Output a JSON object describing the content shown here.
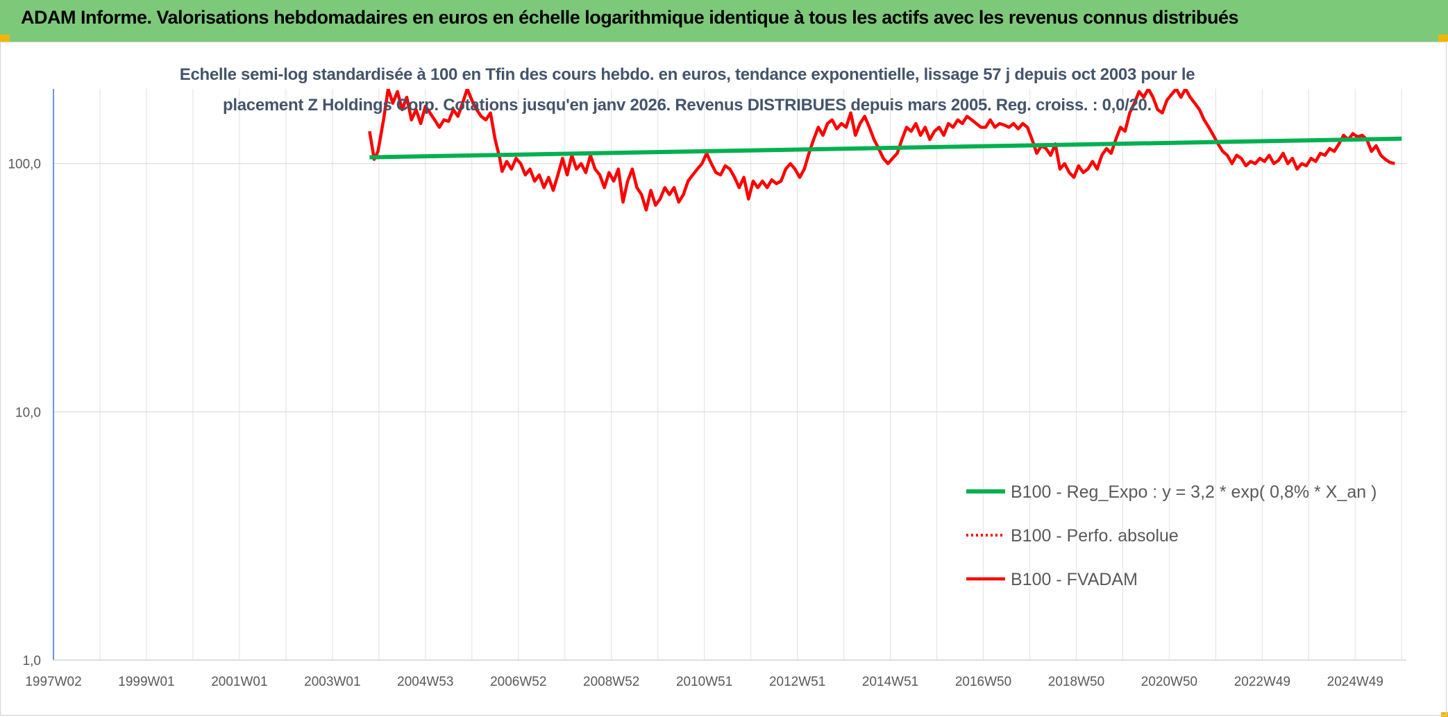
{
  "header": {
    "title": "ADAM Informe. Valorisations hebdomadaires en euros en échelle logarithmique identique à tous les actifs avec les revenus connus distribués"
  },
  "colors": {
    "header_bg": "#7dc97a",
    "accent": "#f2b600",
    "regression": "#00b050",
    "fvadam": "#ff0000",
    "perf": "#ff0000",
    "title_text": "#44546a"
  },
  "chart_data": {
    "type": "line",
    "title_lines": [
      "Echelle semi-log standardisée à 100 en Tfin des cours hebdo. en euros, tendance exponentielle, lissage 57 j depuis oct 2003 pour le",
      "placement Z Holdings Corp. Cotations jusqu'en janv 2026. Revenus DISTRIBUES depuis mars 2005. Reg. croiss. : 0,0/20."
    ],
    "y_scale": "log",
    "ylim": [
      1,
      200
    ],
    "y_ticks": [
      {
        "value": 1,
        "label": "1,0"
      },
      {
        "value": 10,
        "label": "10,0"
      },
      {
        "value": 100,
        "label": "100,0"
      }
    ],
    "x_range": [
      1997.0,
      2026.1
    ],
    "x_ticks": [
      {
        "x": 1997.0,
        "label": "1997W02"
      },
      {
        "x": 1999.0,
        "label": "1999W01"
      },
      {
        "x": 2001.0,
        "label": "2001W01"
      },
      {
        "x": 2003.0,
        "label": "2003W01"
      },
      {
        "x": 2005.0,
        "label": "2004W53"
      },
      {
        "x": 2007.0,
        "label": "2006W52"
      },
      {
        "x": 2009.0,
        "label": "2008W52"
      },
      {
        "x": 2011.0,
        "label": "2010W51"
      },
      {
        "x": 2013.0,
        "label": "2012W51"
      },
      {
        "x": 2015.0,
        "label": "2014W51"
      },
      {
        "x": 2017.0,
        "label": "2016W50"
      },
      {
        "x": 2019.0,
        "label": "2018W50"
      },
      {
        "x": 2021.0,
        "label": "2020W50"
      },
      {
        "x": 2023.0,
        "label": "2022W49"
      },
      {
        "x": 2025.0,
        "label": "2024W49"
      }
    ],
    "grid": true,
    "legend_position": "bottom-right",
    "series": [
      {
        "name": "B100 - Reg_Expo : y = 3,2 * exp( 0,8% *  X_an )",
        "style": "solid-thick",
        "color": "#00b050",
        "points": [
          [
            2003.8,
            106
          ],
          [
            2026.0,
            126
          ]
        ]
      },
      {
        "name": "B100 - Perfo. absolue",
        "style": "dotted",
        "color": "#ff0000",
        "points": []
      },
      {
        "name": "B100 - FVADAM",
        "style": "solid",
        "color": "#ff0000",
        "points": [
          [
            2003.8,
            135
          ],
          [
            2003.9,
            104
          ],
          [
            2003.98,
            112
          ],
          [
            2004.1,
            150
          ],
          [
            2004.2,
            200
          ],
          [
            2004.3,
            175
          ],
          [
            2004.4,
            195
          ],
          [
            2004.5,
            165
          ],
          [
            2004.6,
            185
          ],
          [
            2004.7,
            150
          ],
          [
            2004.8,
            165
          ],
          [
            2004.9,
            145
          ],
          [
            2005.0,
            170
          ],
          [
            2005.1,
            160
          ],
          [
            2005.2,
            150
          ],
          [
            2005.3,
            140
          ],
          [
            2005.4,
            150
          ],
          [
            2005.5,
            148
          ],
          [
            2005.6,
            165
          ],
          [
            2005.7,
            155
          ],
          [
            2005.8,
            175
          ],
          [
            2005.9,
            200
          ],
          [
            2006.0,
            180
          ],
          [
            2006.1,
            165
          ],
          [
            2006.2,
            155
          ],
          [
            2006.3,
            150
          ],
          [
            2006.4,
            160
          ],
          [
            2006.5,
            125
          ],
          [
            2006.6,
            105
          ],
          [
            2006.65,
            93
          ],
          [
            2006.75,
            102
          ],
          [
            2006.85,
            95
          ],
          [
            2006.95,
            105
          ],
          [
            2007.05,
            100
          ],
          [
            2007.15,
            90
          ],
          [
            2007.25,
            95
          ],
          [
            2007.35,
            85
          ],
          [
            2007.45,
            90
          ],
          [
            2007.55,
            80
          ],
          [
            2007.65,
            88
          ],
          [
            2007.75,
            78
          ],
          [
            2007.85,
            90
          ],
          [
            2007.95,
            105
          ],
          [
            2008.05,
            90
          ],
          [
            2008.15,
            108
          ],
          [
            2008.25,
            95
          ],
          [
            2008.35,
            100
          ],
          [
            2008.45,
            92
          ],
          [
            2008.55,
            108
          ],
          [
            2008.65,
            95
          ],
          [
            2008.75,
            90
          ],
          [
            2008.85,
            80
          ],
          [
            2008.95,
            92
          ],
          [
            2009.05,
            85
          ],
          [
            2009.15,
            95
          ],
          [
            2009.25,
            70
          ],
          [
            2009.35,
            85
          ],
          [
            2009.45,
            95
          ],
          [
            2009.55,
            80
          ],
          [
            2009.65,
            75
          ],
          [
            2009.75,
            65
          ],
          [
            2009.85,
            78
          ],
          [
            2009.95,
            68
          ],
          [
            2010.05,
            72
          ],
          [
            2010.15,
            80
          ],
          [
            2010.25,
            75
          ],
          [
            2010.35,
            80
          ],
          [
            2010.45,
            70
          ],
          [
            2010.55,
            75
          ],
          [
            2010.65,
            85
          ],
          [
            2010.75,
            90
          ],
          [
            2010.85,
            95
          ],
          [
            2010.95,
            100
          ],
          [
            2011.05,
            110
          ],
          [
            2011.15,
            100
          ],
          [
            2011.25,
            92
          ],
          [
            2011.35,
            90
          ],
          [
            2011.45,
            98
          ],
          [
            2011.55,
            95
          ],
          [
            2011.65,
            88
          ],
          [
            2011.75,
            80
          ],
          [
            2011.85,
            88
          ],
          [
            2011.95,
            72
          ],
          [
            2012.05,
            85
          ],
          [
            2012.15,
            80
          ],
          [
            2012.25,
            85
          ],
          [
            2012.35,
            80
          ],
          [
            2012.45,
            86
          ],
          [
            2012.55,
            83
          ],
          [
            2012.65,
            85
          ],
          [
            2012.75,
            95
          ],
          [
            2012.85,
            100
          ],
          [
            2012.95,
            95
          ],
          [
            2013.05,
            88
          ],
          [
            2013.15,
            95
          ],
          [
            2013.25,
            110
          ],
          [
            2013.35,
            125
          ],
          [
            2013.45,
            140
          ],
          [
            2013.55,
            130
          ],
          [
            2013.65,
            145
          ],
          [
            2013.75,
            150
          ],
          [
            2013.85,
            138
          ],
          [
            2013.95,
            145
          ],
          [
            2014.05,
            140
          ],
          [
            2014.15,
            160
          ],
          [
            2014.25,
            130
          ],
          [
            2014.35,
            145
          ],
          [
            2014.45,
            155
          ],
          [
            2014.55,
            140
          ],
          [
            2014.65,
            125
          ],
          [
            2014.75,
            115
          ],
          [
            2014.85,
            105
          ],
          [
            2014.95,
            100
          ],
          [
            2015.05,
            105
          ],
          [
            2015.15,
            110
          ],
          [
            2015.25,
            125
          ],
          [
            2015.35,
            140
          ],
          [
            2015.45,
            135
          ],
          [
            2015.55,
            145
          ],
          [
            2015.65,
            130
          ],
          [
            2015.75,
            140
          ],
          [
            2015.85,
            125
          ],
          [
            2015.95,
            135
          ],
          [
            2016.05,
            140
          ],
          [
            2016.15,
            130
          ],
          [
            2016.25,
            145
          ],
          [
            2016.35,
            140
          ],
          [
            2016.45,
            150
          ],
          [
            2016.55,
            145
          ],
          [
            2016.65,
            155
          ],
          [
            2016.75,
            150
          ],
          [
            2016.85,
            145
          ],
          [
            2016.95,
            140
          ],
          [
            2017.05,
            140
          ],
          [
            2017.15,
            150
          ],
          [
            2017.25,
            140
          ],
          [
            2017.35,
            145
          ],
          [
            2017.45,
            143
          ],
          [
            2017.55,
            140
          ],
          [
            2017.65,
            145
          ],
          [
            2017.75,
            138
          ],
          [
            2017.85,
            145
          ],
          [
            2017.95,
            140
          ],
          [
            2018.05,
            125
          ],
          [
            2018.15,
            110
          ],
          [
            2018.25,
            118
          ],
          [
            2018.35,
            115
          ],
          [
            2018.45,
            108
          ],
          [
            2018.55,
            120
          ],
          [
            2018.65,
            95
          ],
          [
            2018.75,
            100
          ],
          [
            2018.85,
            92
          ],
          [
            2018.95,
            88
          ],
          [
            2019.05,
            98
          ],
          [
            2019.15,
            92
          ],
          [
            2019.25,
            95
          ],
          [
            2019.35,
            102
          ],
          [
            2019.45,
            95
          ],
          [
            2019.55,
            108
          ],
          [
            2019.65,
            115
          ],
          [
            2019.75,
            110
          ],
          [
            2019.85,
            125
          ],
          [
            2019.95,
            140
          ],
          [
            2020.05,
            135
          ],
          [
            2020.15,
            160
          ],
          [
            2020.25,
            175
          ],
          [
            2020.35,
            195
          ],
          [
            2020.45,
            185
          ],
          [
            2020.55,
            200
          ],
          [
            2020.65,
            185
          ],
          [
            2020.75,
            165
          ],
          [
            2020.85,
            160
          ],
          [
            2020.95,
            180
          ],
          [
            2021.05,
            190
          ],
          [
            2021.15,
            200
          ],
          [
            2021.25,
            185
          ],
          [
            2021.35,
            200
          ],
          [
            2021.45,
            185
          ],
          [
            2021.55,
            175
          ],
          [
            2021.65,
            165
          ],
          [
            2021.75,
            150
          ],
          [
            2021.85,
            140
          ],
          [
            2021.95,
            130
          ],
          [
            2022.05,
            120
          ],
          [
            2022.15,
            112
          ],
          [
            2022.25,
            108
          ],
          [
            2022.35,
            100
          ],
          [
            2022.45,
            108
          ],
          [
            2022.55,
            105
          ],
          [
            2022.65,
            98
          ],
          [
            2022.75,
            102
          ],
          [
            2022.85,
            100
          ],
          [
            2022.95,
            105
          ],
          [
            2023.05,
            102
          ],
          [
            2023.15,
            108
          ],
          [
            2023.25,
            100
          ],
          [
            2023.35,
            103
          ],
          [
            2023.45,
            110
          ],
          [
            2023.55,
            100
          ],
          [
            2023.65,
            105
          ],
          [
            2023.75,
            95
          ],
          [
            2023.85,
            100
          ],
          [
            2023.95,
            98
          ],
          [
            2024.05,
            105
          ],
          [
            2024.15,
            102
          ],
          [
            2024.25,
            110
          ],
          [
            2024.35,
            108
          ],
          [
            2024.45,
            115
          ],
          [
            2024.55,
            112
          ],
          [
            2024.65,
            120
          ],
          [
            2024.75,
            130
          ],
          [
            2024.85,
            125
          ],
          [
            2024.95,
            132
          ],
          [
            2025.05,
            128
          ],
          [
            2025.15,
            130
          ],
          [
            2025.25,
            125
          ],
          [
            2025.35,
            112
          ],
          [
            2025.45,
            118
          ],
          [
            2025.55,
            108
          ],
          [
            2025.65,
            104
          ],
          [
            2025.75,
            101
          ],
          [
            2025.85,
            100
          ]
        ]
      }
    ]
  }
}
